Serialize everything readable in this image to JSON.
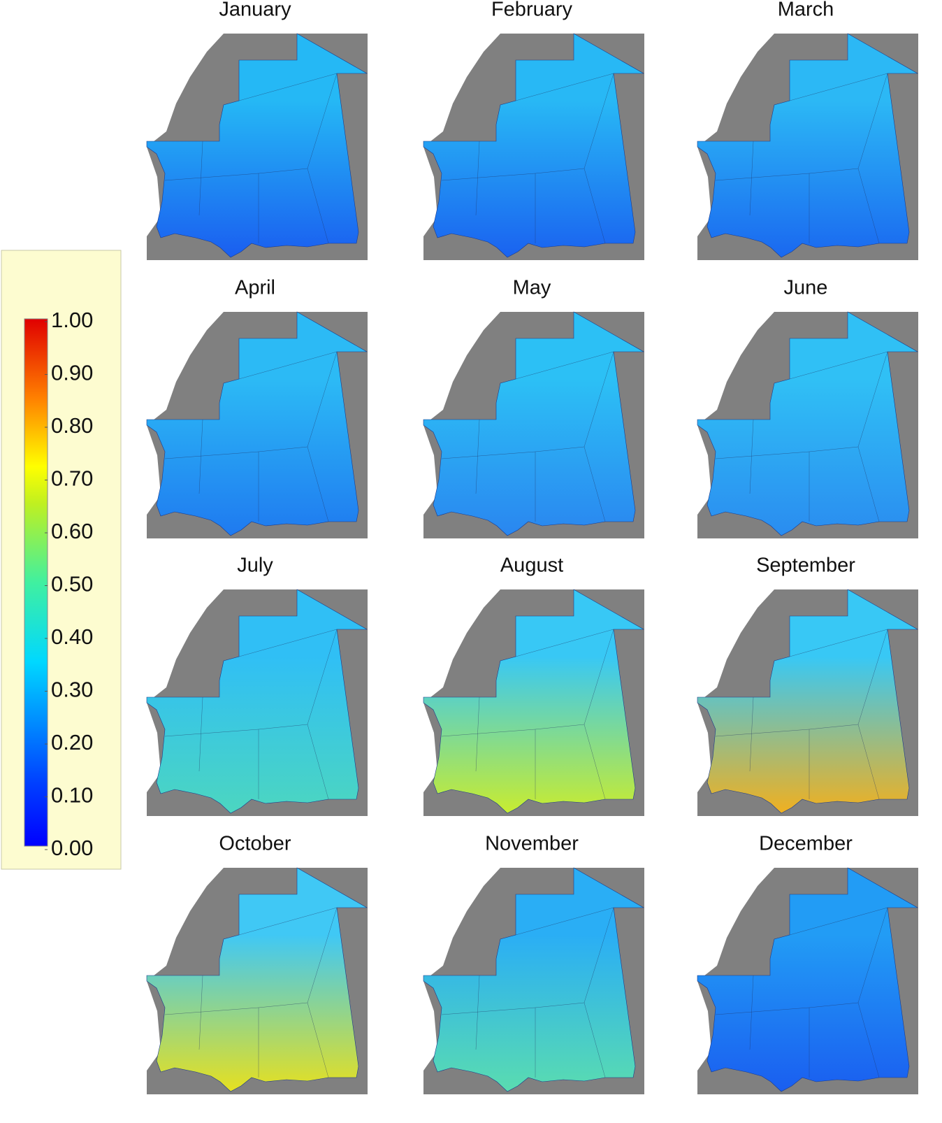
{
  "panels": [
    {
      "title": "January"
    },
    {
      "title": "February"
    },
    {
      "title": "March"
    },
    {
      "title": "April"
    },
    {
      "title": "May"
    },
    {
      "title": "June"
    },
    {
      "title": "July"
    },
    {
      "title": "August"
    },
    {
      "title": "September"
    },
    {
      "title": "October"
    },
    {
      "title": "November"
    },
    {
      "title": "December"
    }
  ],
  "colorbar": {
    "lim": [
      0,
      1
    ],
    "ticks": [
      {
        "value": 1,
        "label": "1.00"
      },
      {
        "value": 0.9,
        "label": "0.90"
      },
      {
        "value": 0.8,
        "label": "0.80"
      },
      {
        "value": 0.7,
        "label": "0.70"
      },
      {
        "value": 0.6,
        "label": "0.60"
      },
      {
        "value": 0.5,
        "label": "0.50"
      },
      {
        "value": 0.4,
        "label": "0.40"
      },
      {
        "value": 0.3,
        "label": "0.30"
      },
      {
        "value": 0.2,
        "label": "0.20"
      },
      {
        "value": 0.1,
        "label": "0.10"
      },
      {
        "value": 0,
        "label": "0.00"
      }
    ]
  }
}
